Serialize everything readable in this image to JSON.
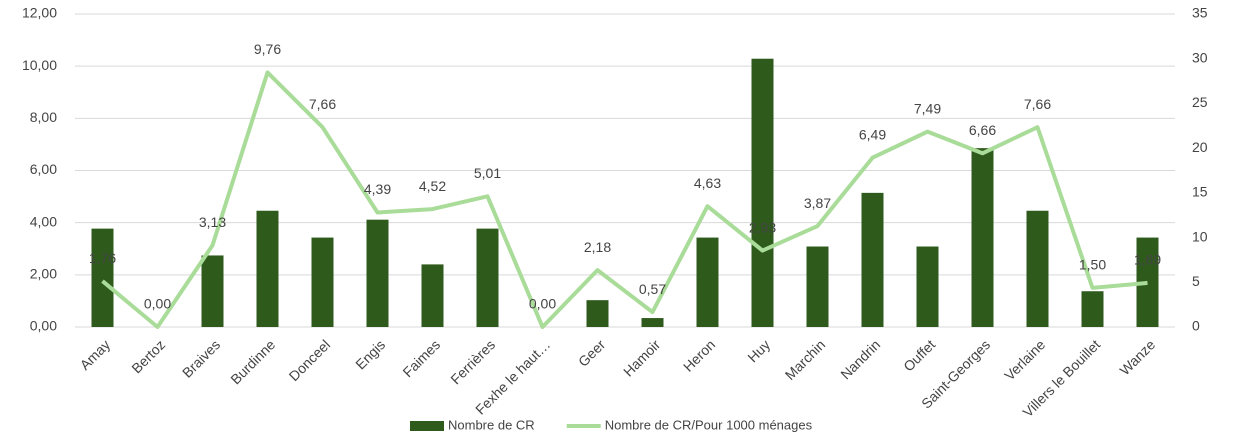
{
  "chart_data": {
    "type": "combo",
    "categories": [
      "Amay",
      "Bertoz",
      "Braives",
      "Burdinne",
      "Donceel",
      "Engis",
      "Faimes",
      "Ferrières",
      "Fexhe le haut…",
      "Geer",
      "Hamoir",
      "Heron",
      "Huy",
      "Marchin",
      "Nandrin",
      "Ouffet",
      "Saint-Georges",
      "Verlaine",
      "Villers le Bouillet",
      "Wanze"
    ],
    "series": [
      {
        "name": "Nombre de CR",
        "type": "bar",
        "axis": "y2",
        "color": "#2e5a1c",
        "values": [
          11,
          0,
          8,
          13,
          10,
          12,
          7,
          11,
          0,
          3,
          1,
          10,
          30,
          9,
          15,
          9,
          20,
          13,
          4,
          10
        ]
      },
      {
        "name": "Nombre de CR/Pour 1000 ménages",
        "type": "line",
        "axis": "y",
        "color": "#a9dc98",
        "values": [
          1.76,
          0,
          3.13,
          9.76,
          7.66,
          4.39,
          4.52,
          5.01,
          0,
          2.18,
          0.57,
          4.63,
          2.93,
          3.87,
          6.49,
          7.49,
          6.66,
          7.66,
          1.5,
          1.69
        ],
        "value_labels": [
          "1,76",
          "0,00",
          "3,13",
          "9,76",
          "7,66",
          "4,39",
          "4,52",
          "5,01",
          "0,00",
          "2,18",
          "0,57",
          "4,63",
          "2,93",
          "3,87",
          "6,49",
          "7,49",
          "6,66",
          "7,66",
          "1,50",
          "1,69"
        ]
      }
    ],
    "ylim": [
      0,
      12
    ],
    "yticks": [
      {
        "value": 0,
        "label": "0,00"
      },
      {
        "value": 2,
        "label": "2,00"
      },
      {
        "value": 4,
        "label": "4,00"
      },
      {
        "value": 6,
        "label": "6,00"
      },
      {
        "value": 8,
        "label": "8,00"
      },
      {
        "value": 10,
        "label": "10,00"
      },
      {
        "value": 12,
        "label": "12,00"
      }
    ],
    "y2lim": [
      0,
      35
    ],
    "y2ticks": [
      0,
      5,
      10,
      15,
      20,
      25,
      30,
      35
    ],
    "grid": true,
    "legend": "bottom"
  }
}
